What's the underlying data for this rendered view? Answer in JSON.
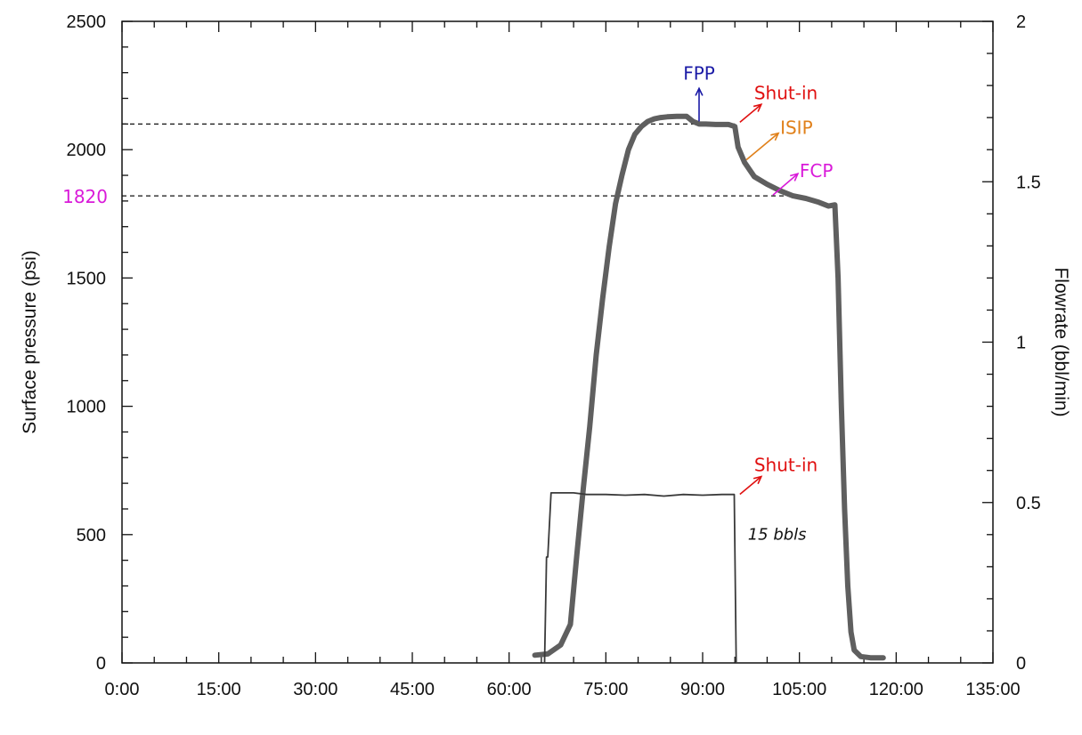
{
  "chart_data": {
    "type": "line",
    "title": "",
    "xlabel": "",
    "ylabel": "Surface pressure (psi)",
    "y2label": "Flowrate (bbl/min)",
    "xlim": [
      0,
      135
    ],
    "ylim": [
      0,
      2500
    ],
    "y2lim": [
      0,
      2
    ],
    "x_ticks": [
      0,
      15,
      30,
      45,
      60,
      75,
      90,
      105,
      120,
      135
    ],
    "x_tick_labels": [
      "0:00",
      "15:00",
      "30:00",
      "45:00",
      "60:00",
      "75:00",
      "90:00",
      "105:00",
      "120:00",
      "135:00"
    ],
    "y_ticks": [
      0,
      500,
      1000,
      1500,
      2000,
      2500
    ],
    "y_tick_labels": [
      "0",
      "500",
      "1000",
      "1500",
      "2000",
      "2500"
    ],
    "y2_ticks": [
      0,
      0.5,
      1,
      1.5,
      2
    ],
    "y2_tick_labels": [
      "0",
      "0.5",
      "1",
      "1.5",
      "2"
    ],
    "grid": false,
    "series": [
      {
        "axis": "left",
        "color": "#5f5f5f",
        "x": [
          64.0,
          66.0,
          68.0,
          69.5,
          70.5,
          71.5,
          72.5,
          73.5,
          74.5,
          75.5,
          76.5,
          77.5,
          78.5,
          79.5,
          80.5,
          81.5,
          82.5,
          83.5,
          84.5,
          86.0,
          87.5,
          88.5,
          89.5,
          90.5,
          92.0,
          94.0,
          95.0,
          95.5,
          96.5,
          98.0,
          100.0,
          102.0,
          104.0,
          106.0,
          108.0,
          109.5,
          110.5,
          111.0,
          111.5,
          112.0,
          112.5,
          113.0,
          113.5,
          114.5,
          116.0,
          118.0
        ],
        "y": [
          30,
          35,
          70,
          150,
          420,
          680,
          920,
          1200,
          1420,
          1620,
          1790,
          1900,
          2000,
          2060,
          2090,
          2110,
          2120,
          2125,
          2128,
          2130,
          2130,
          2110,
          2100,
          2100,
          2098,
          2098,
          2090,
          2010,
          1950,
          1895,
          1865,
          1840,
          1820,
          1810,
          1795,
          1780,
          1785,
          1500,
          1000,
          600,
          300,
          120,
          50,
          25,
          20,
          20
        ]
      },
      {
        "axis": "right",
        "color": "#3a3a3a",
        "x": [
          65.5,
          65.8,
          66.0,
          66.5,
          68.0,
          70.0,
          72.0,
          75.0,
          78.0,
          81.0,
          84.0,
          87.0,
          90.0,
          93.0,
          94.9,
          95.2
        ],
        "y": [
          0.0,
          0.33,
          0.33,
          0.53,
          0.53,
          0.53,
          0.525,
          0.525,
          0.523,
          0.525,
          0.52,
          0.525,
          0.523,
          0.525,
          0.525,
          0.0
        ]
      }
    ],
    "hlines": [
      {
        "y": 2100,
        "x_end": 95
      },
      {
        "y": 1820,
        "x_end": 104
      }
    ],
    "annotations": [
      {
        "text": "FPP",
        "color": "#1a1aa6",
        "x": 90.0,
        "y": 2100
      },
      {
        "text": "Shut-in",
        "color": "#e01010",
        "x": 95.5,
        "y": 2100
      },
      {
        "text": "ISIP",
        "color": "#e0801a",
        "x": 96.5,
        "y": 1950
      },
      {
        "text": "FCP",
        "color": "#d91ad9",
        "x": 102.0,
        "y": 1830
      },
      {
        "text": "Shut-in",
        "color": "#e01010",
        "x": 95.5,
        "y": 650
      },
      {
        "text": "1820",
        "color": "#d91ad9",
        "x": 0,
        "y": 1820
      },
      {
        "text": "15 bbls",
        "color": "#111111",
        "x": 97.0,
        "y": 480
      }
    ]
  }
}
